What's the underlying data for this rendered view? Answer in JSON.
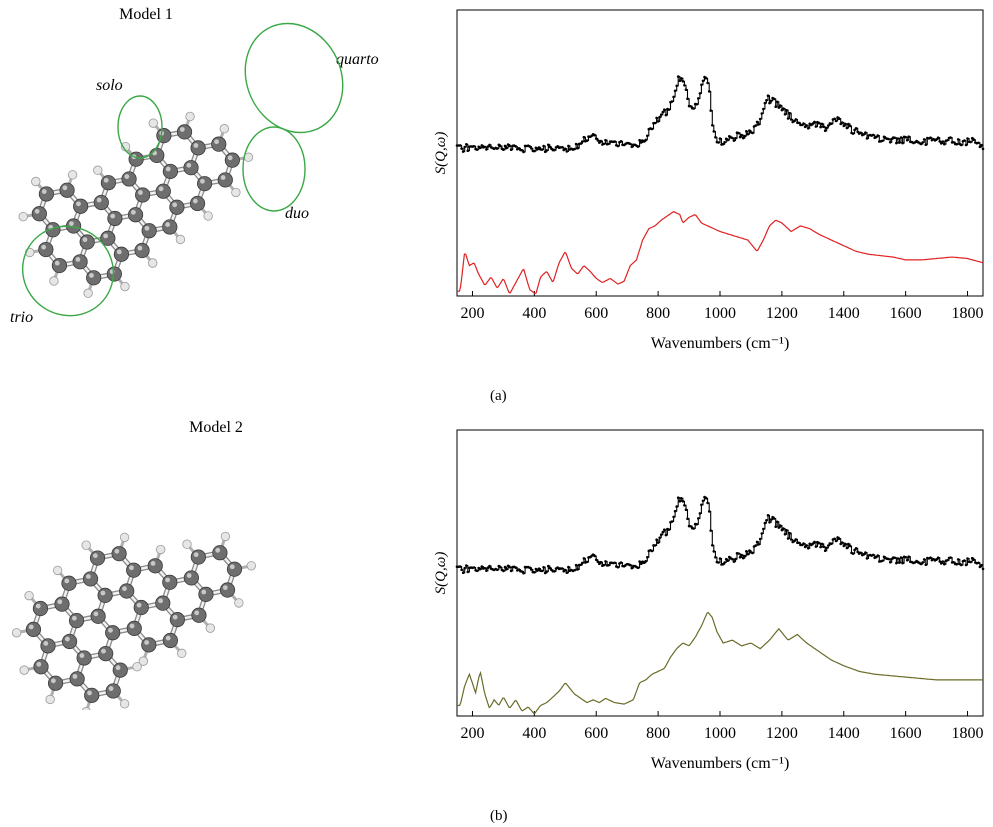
{
  "panels": [
    {
      "model_title": "Model 1",
      "panel_label": "(a)",
      "edge_labels": [
        "solo",
        "quarto",
        "duo",
        "trio"
      ],
      "sim_color": "#e02020"
    },
    {
      "model_title": "Model 2",
      "panel_label": "(b)",
      "sim_color": "#6b6b2a"
    }
  ],
  "colors": {
    "experimental": "#000000",
    "model1_sim": "#e02020",
    "model2_sim": "#6b6b2a",
    "highlight_ellipse": "#3aa845",
    "carbon_atom": "#6e6e6e",
    "hydrogen_atom": "#e6e6e6"
  },
  "chart_data": [
    {
      "type": "line",
      "xlabel": "Wavenumbers (cm⁻¹)",
      "ylabel": "S(Q,ω)",
      "xlim": [
        150,
        1850
      ],
      "xticks": [
        200,
        400,
        600,
        800,
        1000,
        1200,
        1400,
        1600,
        1800
      ],
      "yticks_shown": false,
      "grid": false,
      "series": [
        {
          "role": "experimental",
          "x": [
            160,
            200,
            250,
            300,
            350,
            400,
            450,
            500,
            540,
            570,
            585,
            600,
            640,
            680,
            720,
            760,
            790,
            810,
            830,
            850,
            865,
            875,
            885,
            900,
            915,
            930,
            945,
            955,
            965,
            975,
            990,
            1010,
            1040,
            1070,
            1100,
            1120,
            1140,
            1150,
            1165,
            1180,
            1200,
            1220,
            1240,
            1260,
            1280,
            1300,
            1320,
            1340,
            1360,
            1380,
            1400,
            1430,
            1460,
            1500,
            1540,
            1580,
            1620,
            1660,
            1700,
            1740,
            1780,
            1820,
            1850
          ],
          "y": [
            0.39,
            0.4,
            0.39,
            0.4,
            0.38,
            0.39,
            0.39,
            0.38,
            0.4,
            0.48,
            0.5,
            0.46,
            0.44,
            0.42,
            0.4,
            0.48,
            0.62,
            0.66,
            0.7,
            0.82,
            0.95,
            0.99,
            0.92,
            0.75,
            0.72,
            0.8,
            0.96,
            0.98,
            0.85,
            0.55,
            0.45,
            0.44,
            0.48,
            0.5,
            0.52,
            0.58,
            0.72,
            0.8,
            0.78,
            0.76,
            0.72,
            0.66,
            0.62,
            0.6,
            0.58,
            0.6,
            0.58,
            0.56,
            0.6,
            0.62,
            0.58,
            0.54,
            0.5,
            0.48,
            0.47,
            0.46,
            0.46,
            0.45,
            0.45,
            0.45,
            0.44,
            0.46,
            0.4
          ]
        },
        {
          "role": "simulated",
          "x": [
            160,
            175,
            190,
            205,
            220,
            240,
            260,
            280,
            300,
            320,
            345,
            365,
            385,
            405,
            420,
            440,
            460,
            480,
            500,
            520,
            540,
            560,
            580,
            600,
            620,
            645,
            670,
            690,
            710,
            730,
            750,
            770,
            790,
            810,
            830,
            850,
            870,
            880,
            900,
            920,
            940,
            960,
            980,
            1000,
            1030,
            1060,
            1090,
            1120,
            1140,
            1160,
            1180,
            1200,
            1230,
            1260,
            1290,
            1320,
            1360,
            1400,
            1440,
            1480,
            1520,
            1560,
            1600,
            1650,
            1700,
            1750,
            1800,
            1850
          ],
          "y": [
            0.02,
            0.3,
            0.2,
            0.22,
            0.14,
            0.06,
            0.12,
            0.04,
            0.11,
            0.0,
            0.1,
            0.18,
            0.03,
            0.0,
            0.12,
            0.16,
            0.08,
            0.22,
            0.3,
            0.18,
            0.14,
            0.2,
            0.16,
            0.11,
            0.08,
            0.11,
            0.07,
            0.09,
            0.2,
            0.24,
            0.38,
            0.46,
            0.48,
            0.52,
            0.55,
            0.58,
            0.56,
            0.5,
            0.54,
            0.56,
            0.5,
            0.48,
            0.46,
            0.44,
            0.42,
            0.4,
            0.38,
            0.3,
            0.38,
            0.48,
            0.52,
            0.5,
            0.44,
            0.48,
            0.46,
            0.42,
            0.38,
            0.34,
            0.3,
            0.28,
            0.27,
            0.26,
            0.24,
            0.24,
            0.25,
            0.26,
            0.25,
            0.22
          ]
        }
      ]
    },
    {
      "type": "line",
      "xlabel": "Wavenumbers (cm⁻¹)",
      "ylabel": "S(Q,ω)",
      "xlim": [
        150,
        1850
      ],
      "xticks": [
        200,
        400,
        600,
        800,
        1000,
        1200,
        1400,
        1600,
        1800
      ],
      "yticks_shown": false,
      "grid": false,
      "series": [
        {
          "role": "experimental",
          "x": [
            160,
            200,
            250,
            300,
            350,
            400,
            450,
            500,
            540,
            570,
            585,
            600,
            640,
            680,
            720,
            760,
            790,
            810,
            830,
            850,
            865,
            875,
            885,
            900,
            915,
            930,
            945,
            955,
            965,
            975,
            990,
            1010,
            1040,
            1070,
            1100,
            1120,
            1140,
            1150,
            1165,
            1180,
            1200,
            1220,
            1240,
            1260,
            1280,
            1300,
            1320,
            1340,
            1360,
            1380,
            1400,
            1430,
            1460,
            1500,
            1540,
            1580,
            1620,
            1660,
            1700,
            1740,
            1780,
            1820,
            1850
          ],
          "y": [
            0.38,
            0.39,
            0.38,
            0.39,
            0.37,
            0.38,
            0.38,
            0.37,
            0.39,
            0.47,
            0.5,
            0.45,
            0.43,
            0.41,
            0.39,
            0.47,
            0.6,
            0.66,
            0.7,
            0.82,
            0.94,
            0.99,
            0.92,
            0.75,
            0.72,
            0.8,
            0.96,
            0.98,
            0.85,
            0.55,
            0.45,
            0.44,
            0.47,
            0.5,
            0.52,
            0.58,
            0.72,
            0.8,
            0.79,
            0.76,
            0.72,
            0.66,
            0.62,
            0.6,
            0.58,
            0.6,
            0.58,
            0.56,
            0.6,
            0.62,
            0.58,
            0.54,
            0.5,
            0.48,
            0.47,
            0.46,
            0.46,
            0.45,
            0.45,
            0.45,
            0.44,
            0.46,
            0.4
          ]
        },
        {
          "role": "simulated",
          "x": [
            160,
            175,
            190,
            210,
            225,
            240,
            255,
            270,
            285,
            300,
            320,
            340,
            360,
            380,
            400,
            420,
            440,
            460,
            480,
            500,
            515,
            530,
            550,
            570,
            590,
            610,
            630,
            660,
            690,
            720,
            740,
            760,
            780,
            800,
            820,
            840,
            860,
            880,
            900,
            920,
            940,
            960,
            975,
            990,
            1010,
            1040,
            1070,
            1100,
            1130,
            1160,
            1190,
            1220,
            1250,
            1280,
            1320,
            1360,
            1400,
            1450,
            1500,
            1550,
            1600,
            1650,
            1700,
            1750,
            1800,
            1850
          ],
          "y": [
            0.06,
            0.2,
            0.28,
            0.15,
            0.3,
            0.14,
            0.04,
            0.1,
            0.06,
            0.12,
            0.04,
            0.1,
            0.02,
            0.05,
            0.0,
            0.06,
            0.08,
            0.12,
            0.16,
            0.22,
            0.18,
            0.14,
            0.11,
            0.08,
            0.1,
            0.08,
            0.11,
            0.08,
            0.07,
            0.1,
            0.22,
            0.24,
            0.28,
            0.3,
            0.32,
            0.4,
            0.46,
            0.5,
            0.48,
            0.54,
            0.62,
            0.72,
            0.68,
            0.58,
            0.5,
            0.52,
            0.48,
            0.5,
            0.46,
            0.52,
            0.6,
            0.52,
            0.56,
            0.5,
            0.44,
            0.38,
            0.34,
            0.3,
            0.28,
            0.27,
            0.26,
            0.25,
            0.24,
            0.24,
            0.24,
            0.24
          ]
        }
      ]
    }
  ]
}
